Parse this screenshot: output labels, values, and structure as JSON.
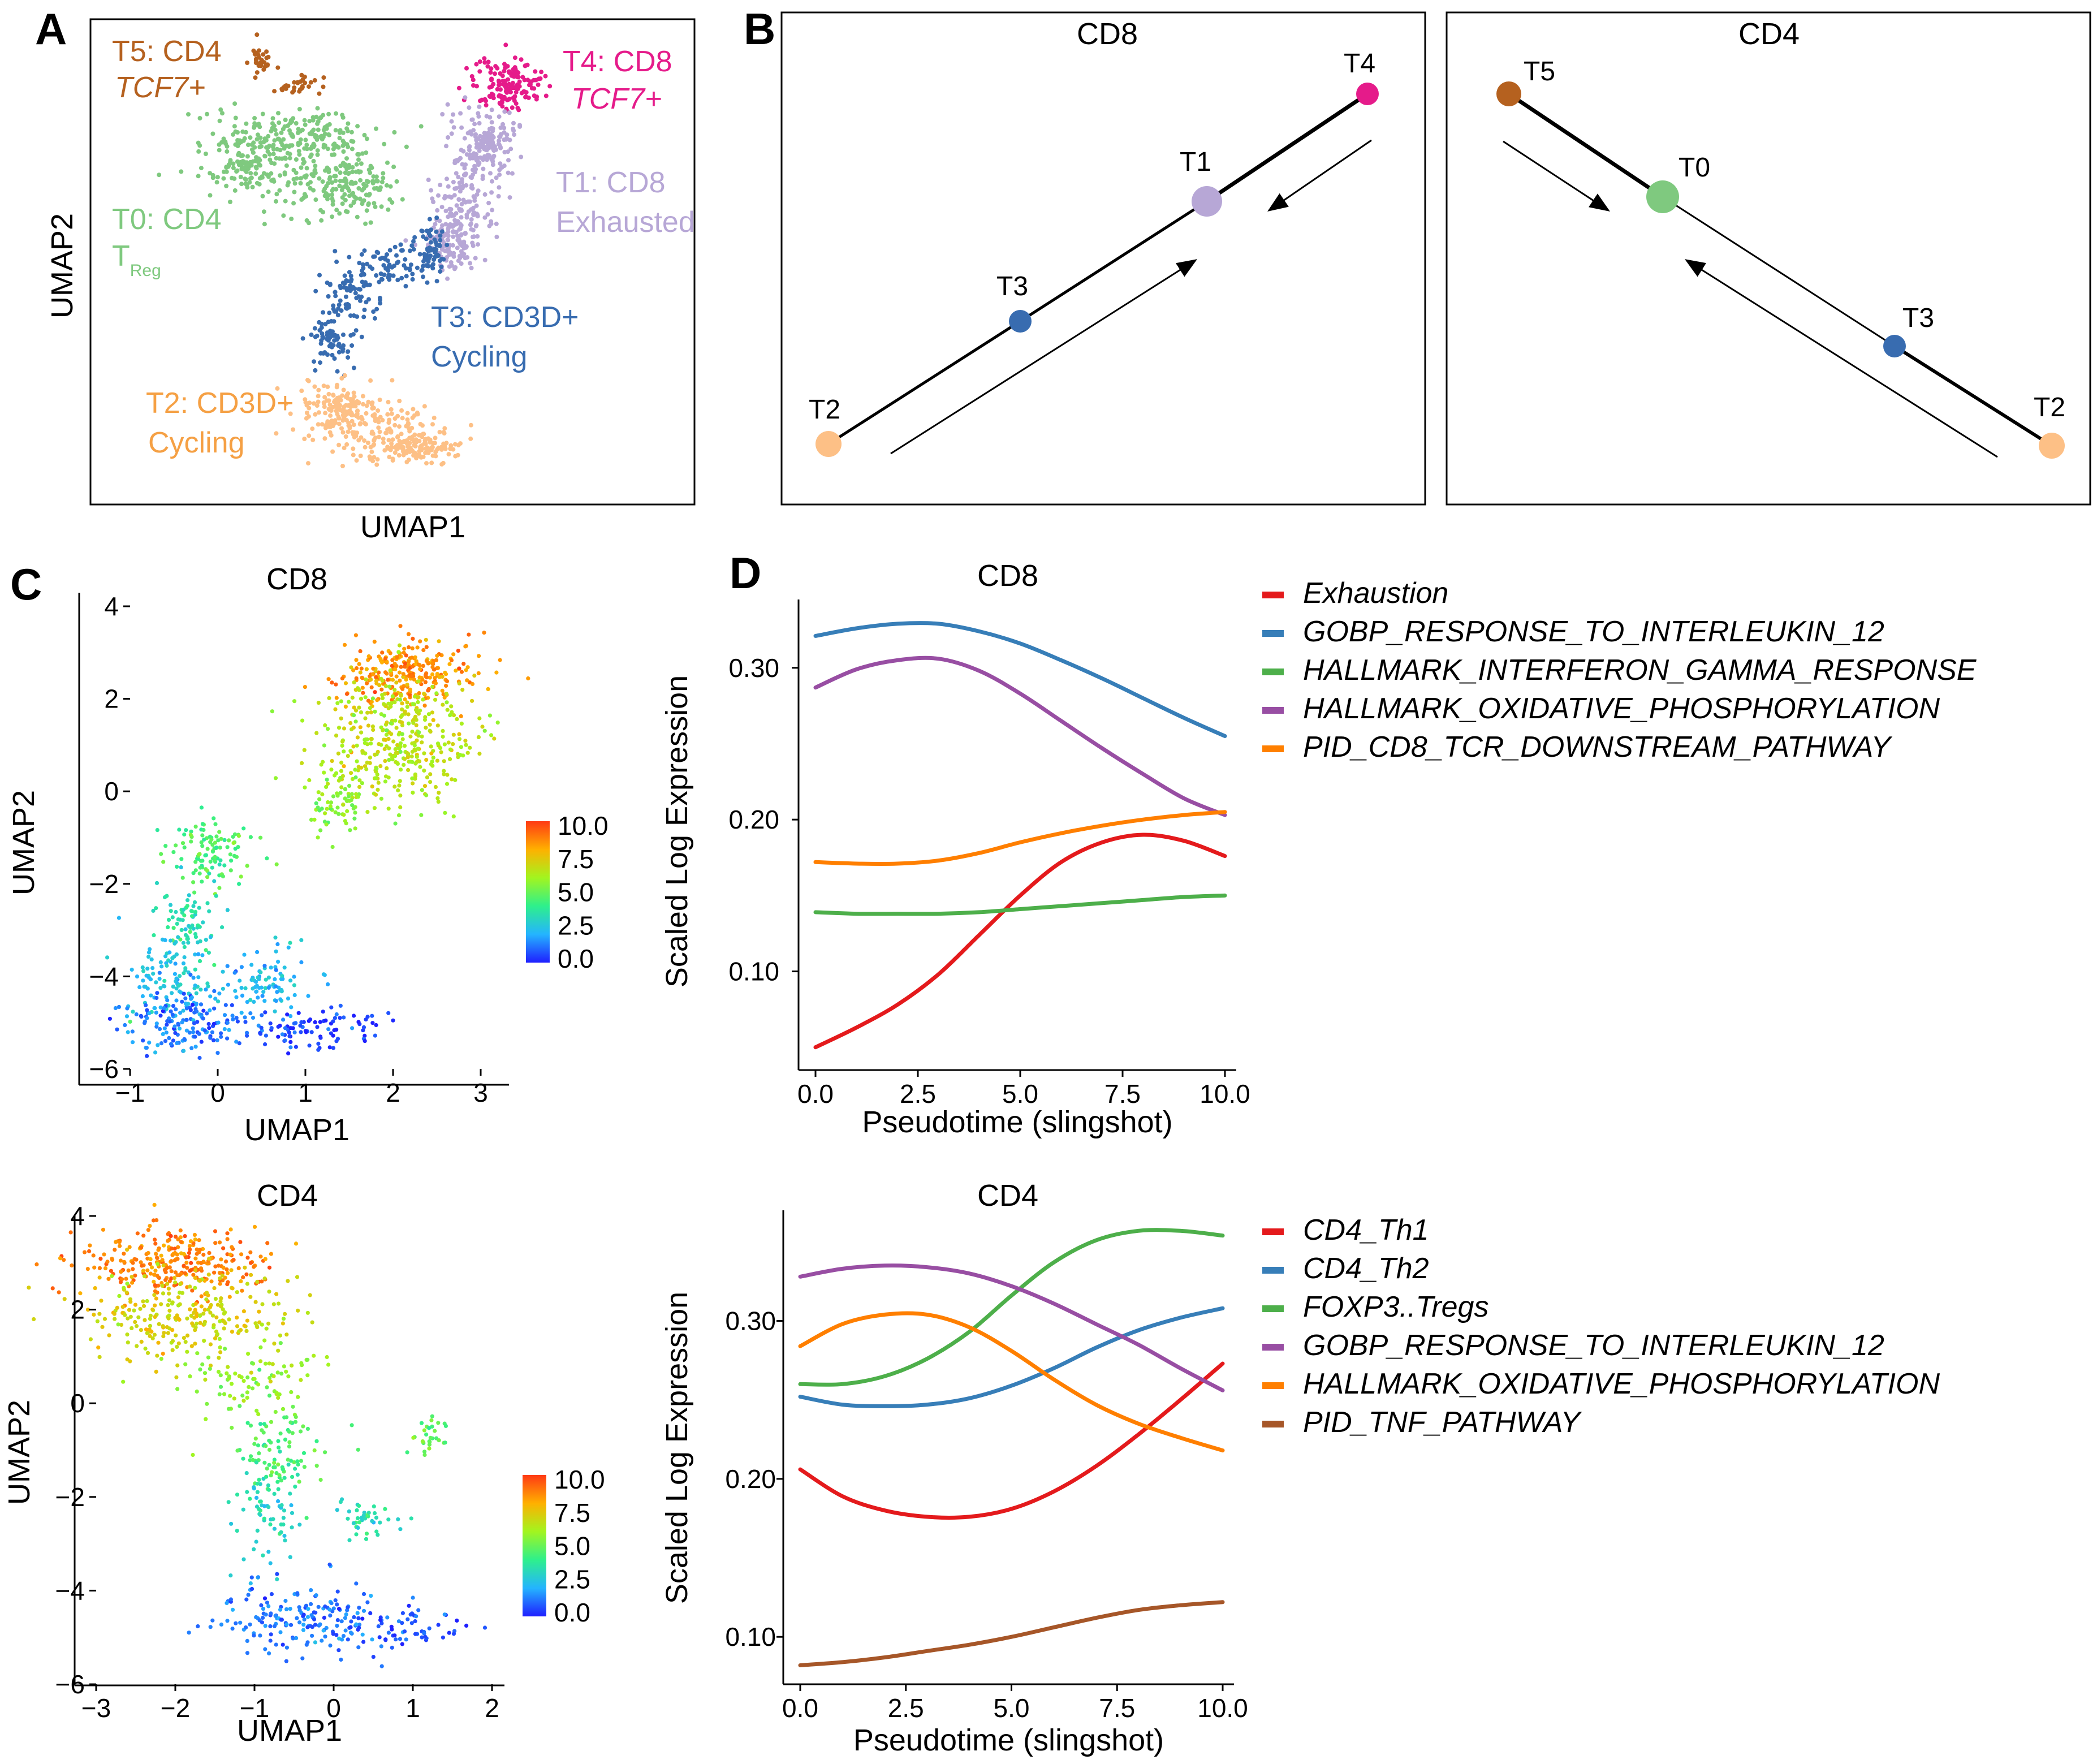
{
  "panels": {
    "A": {
      "letter": "A",
      "xlabel": "UMAP1",
      "ylabel": "UMAP2",
      "clusters": [
        {
          "id": "T5",
          "line1": "T5: CD4",
          "line2": "TCF7+",
          "color": "#b5611f"
        },
        {
          "id": "T4",
          "line1": "T4: CD8",
          "line2": "TCF7+",
          "color": "#e51b8a"
        },
        {
          "id": "T1",
          "line1": "T1: CD8",
          "line2": "Exhausted",
          "color": "#b7a7d6"
        },
        {
          "id": "T0",
          "line1": "T0: CD4",
          "line2": "T",
          "sub": "Reg",
          "color": "#7fc97f"
        },
        {
          "id": "T3",
          "line1": "T3: CD3D+",
          "line2": "Cycling",
          "color": "#386cb0"
        },
        {
          "id": "T2",
          "line1": "T2: CD3D+",
          "line2": "Cycling",
          "color": "#fdc086"
        }
      ]
    },
    "B": {
      "letter": "B",
      "cd8": {
        "title": "CD8",
        "nodes": [
          "T2",
          "T3",
          "T1",
          "T4"
        ]
      },
      "cd4": {
        "title": "CD4",
        "nodes": [
          "T5",
          "T0",
          "T3",
          "T2"
        ]
      }
    },
    "C": {
      "letter": "C",
      "cd8": {
        "title": "CD8",
        "xlabel": "UMAP1",
        "ylabel": "UMAP2",
        "xticks": [
          "−1",
          "0",
          "1",
          "2",
          "3"
        ],
        "yticks": [
          "4",
          "2",
          "0",
          "−2",
          "−4",
          "−6"
        ]
      },
      "cd4": {
        "title": "CD4",
        "xlabel": "UMAP1",
        "ylabel": "UMAP2",
        "xticks": [
          "−3",
          "−2",
          "−1",
          "0",
          "1",
          "2"
        ],
        "yticks": [
          "4",
          "2",
          "0",
          "−2",
          "−4",
          "−6"
        ]
      },
      "colorbar_ticks": [
        "10.0",
        "7.5",
        "5.0",
        "2.5",
        "0.0"
      ]
    },
    "D": {
      "letter": "D"
    }
  },
  "chart_data": [
    {
      "type": "line",
      "title": "CD8",
      "xlabel": "Pseudotime (slingshot)",
      "ylabel": "Scaled Log Expression",
      "xlim": [
        0,
        10
      ],
      "ylim": [
        0.035,
        0.345
      ],
      "xticks": [
        "0.0",
        "2.5",
        "5.0",
        "7.5",
        "10.0"
      ],
      "yticks": [
        "0.30",
        "0.20",
        "0.10"
      ],
      "x": [
        0,
        1,
        2,
        3,
        4,
        5,
        6,
        7,
        8,
        9,
        10
      ],
      "series": [
        {
          "name": "Exhaustion",
          "color": "#e41a1c",
          "values": [
            0.05,
            0.063,
            0.078,
            0.098,
            0.124,
            0.15,
            0.172,
            0.185,
            0.19,
            0.186,
            0.176
          ]
        },
        {
          "name": "GOBP_RESPONSE_TO_INTERLEUKIN_12",
          "color": "#377eb8",
          "values": [
            0.321,
            0.326,
            0.329,
            0.329,
            0.324,
            0.316,
            0.305,
            0.293,
            0.28,
            0.267,
            0.255
          ]
        },
        {
          "name": "HALLMARK_INTERFERON_GAMMA_RESPONSE",
          "color": "#4daf4a",
          "values": [
            0.139,
            0.138,
            0.138,
            0.138,
            0.139,
            0.141,
            0.143,
            0.145,
            0.147,
            0.149,
            0.15
          ]
        },
        {
          "name": "HALLMARK_OXIDATIVE_PHOSPHORYLATION",
          "color": "#984ea3",
          "values": [
            0.287,
            0.299,
            0.305,
            0.306,
            0.298,
            0.283,
            0.265,
            0.247,
            0.23,
            0.214,
            0.203
          ]
        },
        {
          "name": "PID_CD8_TCR_DOWNSTREAM_PATHWAY",
          "color": "#ff7f00",
          "values": [
            0.172,
            0.171,
            0.171,
            0.173,
            0.178,
            0.185,
            0.191,
            0.196,
            0.2,
            0.203,
            0.205
          ]
        }
      ]
    },
    {
      "type": "line",
      "title": "CD4",
      "xlabel": "Pseudotime (slingshot)",
      "ylabel": "Scaled Log Expression",
      "xlim": [
        0,
        10
      ],
      "ylim": [
        0.07,
        0.37
      ],
      "xticks": [
        "0.0",
        "2.5",
        "5.0",
        "7.5",
        "10.0"
      ],
      "yticks": [
        "0.30",
        "0.20",
        "0.10"
      ],
      "x": [
        0,
        1,
        2,
        3,
        4,
        5,
        6,
        7,
        8,
        9,
        10
      ],
      "series": [
        {
          "name": "CD4_Th1",
          "color": "#e41a1c",
          "values": [
            0.206,
            0.189,
            0.18,
            0.176,
            0.176,
            0.181,
            0.192,
            0.208,
            0.228,
            0.25,
            0.273
          ]
        },
        {
          "name": "CD4_Th2",
          "color": "#377eb8",
          "values": [
            0.252,
            0.247,
            0.246,
            0.247,
            0.251,
            0.259,
            0.27,
            0.283,
            0.294,
            0.302,
            0.308
          ]
        },
        {
          "name": "FOXP3..Tregs",
          "color": "#4daf4a",
          "values": [
            0.26,
            0.26,
            0.265,
            0.276,
            0.293,
            0.316,
            0.337,
            0.351,
            0.357,
            0.357,
            0.354
          ]
        },
        {
          "name": "GOBP_RESPONSE_TO_INTERLEUKIN_12",
          "color": "#984ea3",
          "values": [
            0.328,
            0.333,
            0.335,
            0.334,
            0.33,
            0.322,
            0.311,
            0.298,
            0.285,
            0.27,
            0.256
          ]
        },
        {
          "name": "HALLMARK_OXIDATIVE_PHOSPHORYLATION",
          "color": "#ff7f00",
          "values": [
            0.284,
            0.298,
            0.304,
            0.304,
            0.296,
            0.281,
            0.263,
            0.247,
            0.235,
            0.226,
            0.218
          ]
        },
        {
          "name": "PID_TNF_PATHWAY",
          "color": "#a65628",
          "values": [
            0.082,
            0.084,
            0.087,
            0.091,
            0.095,
            0.1,
            0.106,
            0.112,
            0.117,
            0.12,
            0.122
          ]
        }
      ]
    }
  ]
}
